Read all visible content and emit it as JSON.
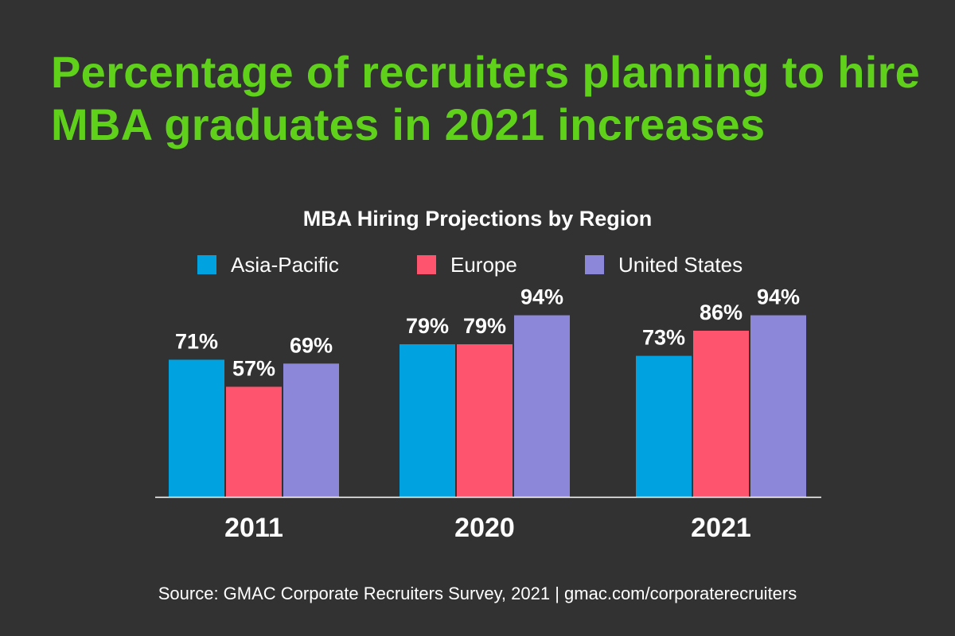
{
  "headline": "Percentage of recruiters planning to hire MBA graduates in 2021 increases",
  "source": "Source: GMAC Corporate Recruiters Survey, 2021 | gmac.com/corporaterecruiters",
  "colors": {
    "background": "#323233",
    "headline": "#5fd11b",
    "text": "#ffffff",
    "axis": "#ffffff"
  },
  "chart_data": {
    "type": "bar",
    "title": "MBA Hiring Projections by Region",
    "xlabel": "",
    "ylabel": "",
    "ylim": [
      0,
      100
    ],
    "grid": false,
    "legend_position": "top",
    "value_suffix": "%",
    "categories": [
      "2011",
      "2020",
      "2021"
    ],
    "series": [
      {
        "name": "Asia-Pacific",
        "color": "#00a3e0",
        "values": [
          71,
          79,
          73
        ]
      },
      {
        "name": "Europe",
        "color": "#ff546e",
        "values": [
          57,
          79,
          86
        ]
      },
      {
        "name": "United States",
        "color": "#8d87d9",
        "values": [
          69,
          94,
          94
        ]
      }
    ]
  }
}
